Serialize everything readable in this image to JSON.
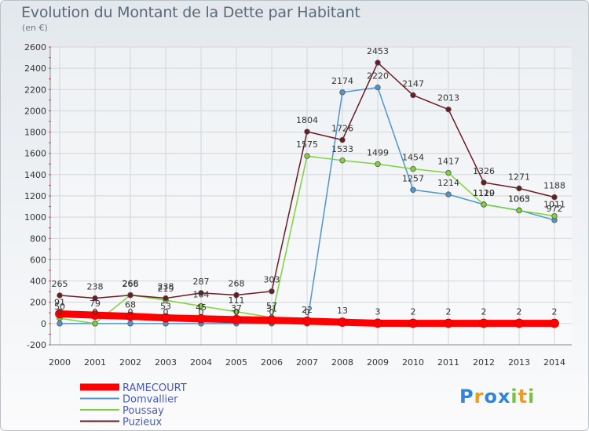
{
  "chart_data": {
    "type": "line",
    "title": "Evolution du Montant de la Dette par Habitant",
    "subtitle": "(en €)",
    "x": [
      "2000",
      "2001",
      "2002",
      "2003",
      "2004",
      "2005",
      "2006",
      "2007",
      "2008",
      "2009",
      "2010",
      "2011",
      "2012",
      "2013",
      "2014"
    ],
    "ylim": [
      -200,
      2600
    ],
    "yticks": [
      -200,
      0,
      200,
      400,
      600,
      800,
      1000,
      1200,
      1400,
      1600,
      1800,
      2000,
      2200,
      2400,
      2600
    ],
    "grid": true,
    "legend_position": "bottom-left",
    "series": [
      {
        "name": "RAMECOURT",
        "color": "#ff0000",
        "values": [
          91,
          79,
          68,
          53,
          45,
          37,
          31,
          22,
          13,
          3,
          2,
          2,
          2,
          2,
          2
        ]
      },
      {
        "name": "Domvallier",
        "color": "#4f95cf",
        "values": [
          0,
          0,
          0,
          0,
          0,
          0,
          0,
          0,
          2174,
          2220,
          1257,
          1214,
          1120,
          1065,
          972
        ]
      },
      {
        "name": "Poussay",
        "color": "#7ed33d",
        "values": [
          50,
          0,
          268,
          219,
          164,
          111,
          57,
          1575,
          1533,
          1499,
          1454,
          1417,
          1119,
          1063,
          1011
        ]
      },
      {
        "name": "Puzieux",
        "color": "#6b1c23",
        "values": [
          265,
          238,
          266,
          238,
          287,
          268,
          303,
          1804,
          1726,
          2453,
          2147,
          2013,
          1326,
          1271,
          1188
        ]
      }
    ]
  },
  "logo": {
    "letters": [
      "P",
      "r",
      "o",
      "x",
      "i",
      "t",
      "i"
    ],
    "colors": [
      "#2e86d8",
      "#f29b13",
      "#2e86d8",
      "#2e86d8",
      "#7ac143",
      "#f29b13",
      "#7ac143"
    ]
  }
}
